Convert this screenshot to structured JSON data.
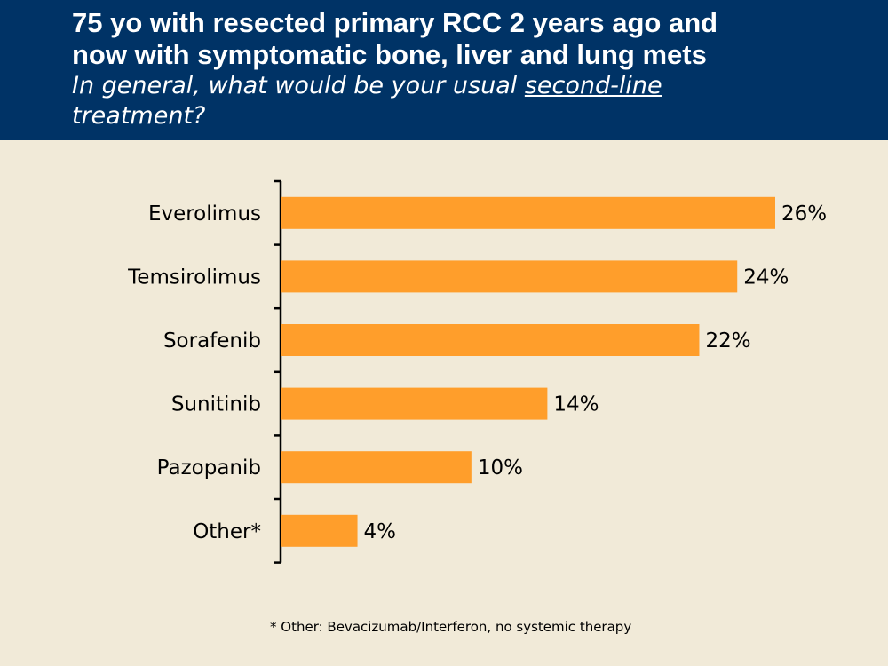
{
  "header": {
    "title_line1": "75 yo with resected primary RCC 2 years ago and",
    "title_line2": "now with symptomatic bone, liver and lung mets",
    "subtitle_pre": "In general, what would be your usual ",
    "subtitle_emph": "second-line",
    "subtitle_post": "treatment?",
    "background_color": "#003366"
  },
  "chart_data": {
    "type": "bar",
    "orientation": "horizontal",
    "categories": [
      "Everolimus",
      "Temsirolimus",
      "Sorafenib",
      "Sunitinib",
      "Pazopanib",
      "Other*"
    ],
    "values": [
      26,
      24,
      22,
      14,
      10,
      4
    ],
    "value_labels": [
      "26%",
      "24%",
      "22%",
      "14%",
      "10%",
      "4%"
    ],
    "bar_color": "#ff9e2b",
    "xlim": [
      0,
      30
    ],
    "title": "",
    "xlabel": "",
    "ylabel": "",
    "grid": false
  },
  "footnote": "* Other: Bevacizumab/Interferon, no systemic therapy"
}
